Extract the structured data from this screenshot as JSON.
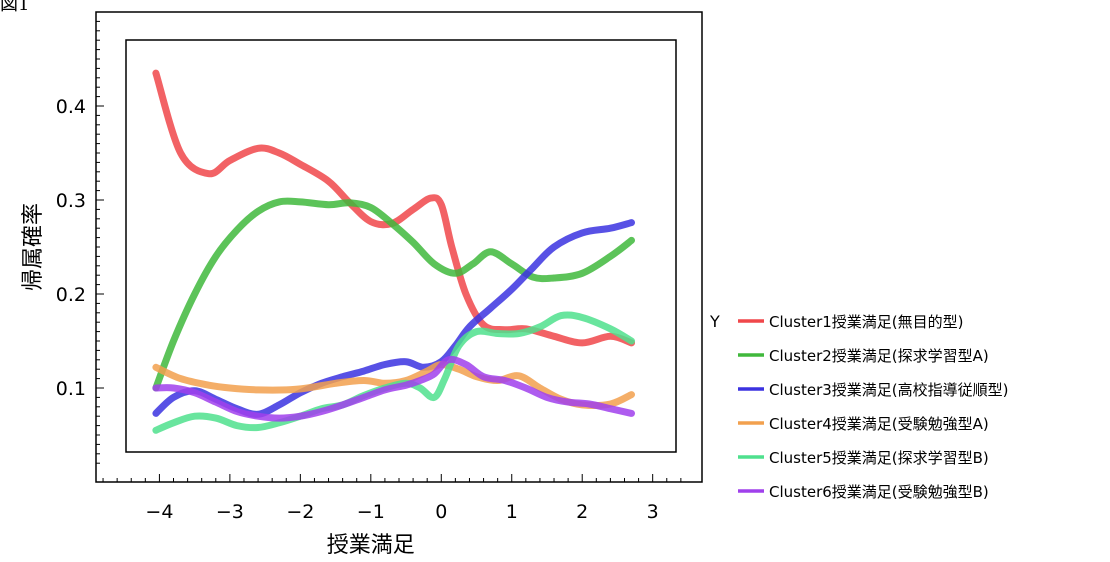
{
  "caption": "図1",
  "chart_data": {
    "type": "line",
    "xlabel": "授業満足",
    "ylabel": "帰属確率",
    "xlim": [
      -4.9,
      3.7
    ],
    "ylim": [
      0.0,
      0.5
    ],
    "xticks": [
      -4,
      -3,
      -2,
      -1,
      0,
      1,
      2,
      3
    ],
    "xtick_labels": [
      "−4",
      "−3",
      "−2",
      "−1",
      "0",
      "1",
      "2",
      "3"
    ],
    "yticks": [
      0.1,
      0.2,
      0.3,
      0.4
    ],
    "ytick_labels": [
      "0.1",
      "0.2",
      "0.3",
      "0.4"
    ],
    "legend_title": "Y",
    "legend_position": "right",
    "grid": false,
    "series": [
      {
        "name": "Cluster1授業満足(無目的型)",
        "color": "#f0474a",
        "x": [
          -4.05,
          -3.7,
          -3.3,
          -3.0,
          -2.6,
          -2.3,
          -2.0,
          -1.6,
          -1.3,
          -1.0,
          -0.7,
          -0.4,
          -0.15,
          0.0,
          0.15,
          0.35,
          0.6,
          0.9,
          1.2,
          1.6,
          2.0,
          2.4,
          2.7
        ],
        "y": [
          0.435,
          0.35,
          0.328,
          0.342,
          0.355,
          0.35,
          0.338,
          0.32,
          0.297,
          0.277,
          0.275,
          0.29,
          0.302,
          0.295,
          0.25,
          0.2,
          0.167,
          0.162,
          0.163,
          0.155,
          0.148,
          0.155,
          0.148
        ]
      },
      {
        "name": "Cluster2授業満足(探求学習型A)",
        "color": "#40b83c",
        "x": [
          -4.05,
          -3.8,
          -3.5,
          -3.2,
          -2.9,
          -2.6,
          -2.3,
          -2.0,
          -1.6,
          -1.3,
          -1.0,
          -0.7,
          -0.4,
          -0.1,
          0.2,
          0.45,
          0.7,
          1.0,
          1.3,
          1.6,
          2.0,
          2.4,
          2.7
        ],
        "y": [
          0.1,
          0.15,
          0.2,
          0.24,
          0.268,
          0.288,
          0.298,
          0.298,
          0.295,
          0.297,
          0.292,
          0.275,
          0.255,
          0.232,
          0.222,
          0.232,
          0.245,
          0.232,
          0.218,
          0.217,
          0.222,
          0.24,
          0.257
        ]
      },
      {
        "name": "Cluster3授業満足(高校指導従順型)",
        "color": "#3b32e0",
        "x": [
          -4.05,
          -3.8,
          -3.5,
          -3.2,
          -2.9,
          -2.6,
          -2.3,
          -2.0,
          -1.7,
          -1.4,
          -1.1,
          -0.8,
          -0.5,
          -0.25,
          0.0,
          0.2,
          0.4,
          0.7,
          1.0,
          1.3,
          1.6,
          2.0,
          2.4,
          2.7
        ],
        "y": [
          0.073,
          0.09,
          0.097,
          0.088,
          0.078,
          0.072,
          0.082,
          0.095,
          0.105,
          0.112,
          0.118,
          0.125,
          0.128,
          0.122,
          0.128,
          0.145,
          0.165,
          0.185,
          0.205,
          0.228,
          0.25,
          0.265,
          0.27,
          0.276
        ]
      },
      {
        "name": "Cluster4授業満足(受験勉強型A)",
        "color": "#f2a04e",
        "x": [
          -4.05,
          -3.7,
          -3.3,
          -3.0,
          -2.6,
          -2.2,
          -1.9,
          -1.5,
          -1.1,
          -0.8,
          -0.5,
          -0.2,
          0.0,
          0.25,
          0.5,
          0.8,
          1.1,
          1.4,
          1.7,
          2.0,
          2.4,
          2.7
        ],
        "y": [
          0.122,
          0.11,
          0.103,
          0.1,
          0.098,
          0.098,
          0.1,
          0.105,
          0.108,
          0.105,
          0.108,
          0.118,
          0.125,
          0.12,
          0.112,
          0.108,
          0.113,
          0.1,
          0.088,
          0.082,
          0.083,
          0.093
        ]
      },
      {
        "name": "Cluster5授業満足(探求学習型B)",
        "color": "#4fe08d",
        "x": [
          -4.05,
          -3.8,
          -3.5,
          -3.2,
          -2.9,
          -2.6,
          -2.3,
          -2.0,
          -1.7,
          -1.4,
          -1.1,
          -0.8,
          -0.5,
          -0.3,
          -0.1,
          0.05,
          0.25,
          0.5,
          0.8,
          1.1,
          1.4,
          1.7,
          2.0,
          2.4,
          2.7
        ],
        "y": [
          0.055,
          0.063,
          0.07,
          0.068,
          0.06,
          0.058,
          0.063,
          0.07,
          0.078,
          0.082,
          0.092,
          0.1,
          0.105,
          0.1,
          0.09,
          0.11,
          0.145,
          0.16,
          0.158,
          0.158,
          0.165,
          0.177,
          0.175,
          0.163,
          0.15
        ]
      },
      {
        "name": "Cluster6授業満足(受験勉強型B)",
        "color": "#a040ec",
        "x": [
          -4.05,
          -3.8,
          -3.5,
          -3.2,
          -2.9,
          -2.6,
          -2.3,
          -2.0,
          -1.7,
          -1.4,
          -1.1,
          -0.8,
          -0.5,
          -0.3,
          -0.1,
          0.1,
          0.35,
          0.6,
          0.9,
          1.2,
          1.5,
          1.8,
          2.1,
          2.4,
          2.7
        ],
        "y": [
          0.1,
          0.1,
          0.095,
          0.085,
          0.075,
          0.07,
          0.068,
          0.07,
          0.075,
          0.082,
          0.09,
          0.098,
          0.103,
          0.108,
          0.115,
          0.13,
          0.125,
          0.112,
          0.108,
          0.1,
          0.09,
          0.085,
          0.083,
          0.078,
          0.073
        ]
      }
    ]
  }
}
